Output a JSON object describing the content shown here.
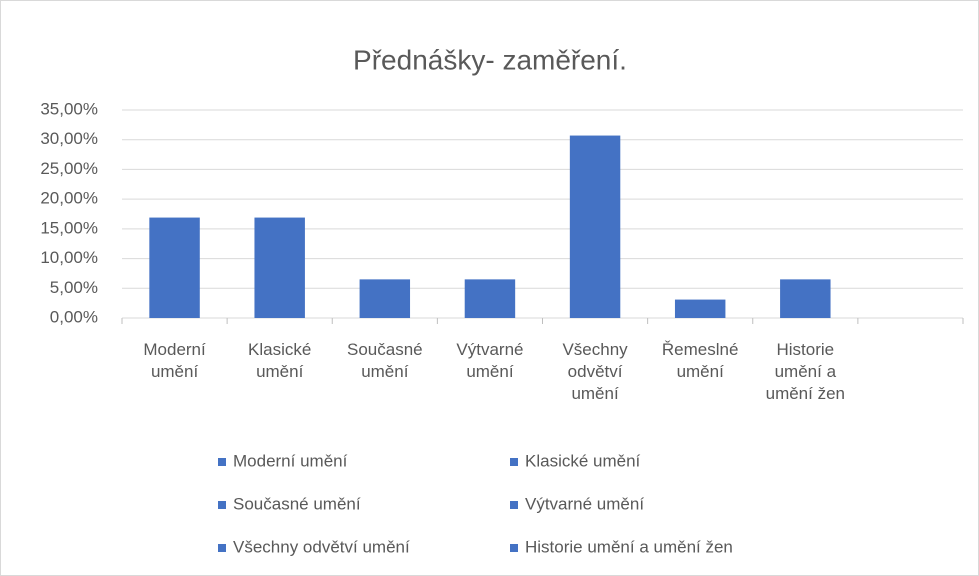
{
  "chart_data": {
    "type": "bar",
    "title": "Přednášky- zaměření.",
    "categories": [
      "Moderní umění",
      "Klasické umění",
      "Současné umění",
      "Výtvarné umění",
      "Všechny odvětví umění",
      "Řemeslné umění",
      "Historie umění a umění žen",
      null
    ],
    "values": [
      16.9,
      16.9,
      6.5,
      6.5,
      30.7,
      3.1,
      6.5,
      null
    ],
    "color": "#4472c4",
    "ylim": [
      0,
      35
    ],
    "yticks": [
      {
        "value": 0,
        "label": "0,00%"
      },
      {
        "value": 5,
        "label": "5,00%"
      },
      {
        "value": 10,
        "label": "10,00%"
      },
      {
        "value": 15,
        "label": "15,00%"
      },
      {
        "value": 20,
        "label": "20,00%"
      },
      {
        "value": 25,
        "label": "25,00%"
      },
      {
        "value": 30,
        "label": "30,00%"
      },
      {
        "value": 35,
        "label": "35,00%"
      }
    ],
    "grid": true,
    "legend": [
      "Moderní umění",
      "Klasické umění",
      "Současné umění",
      "Výtvarné umění",
      "Všechny odvětví umění",
      "Historie umění a umění žen"
    ]
  }
}
